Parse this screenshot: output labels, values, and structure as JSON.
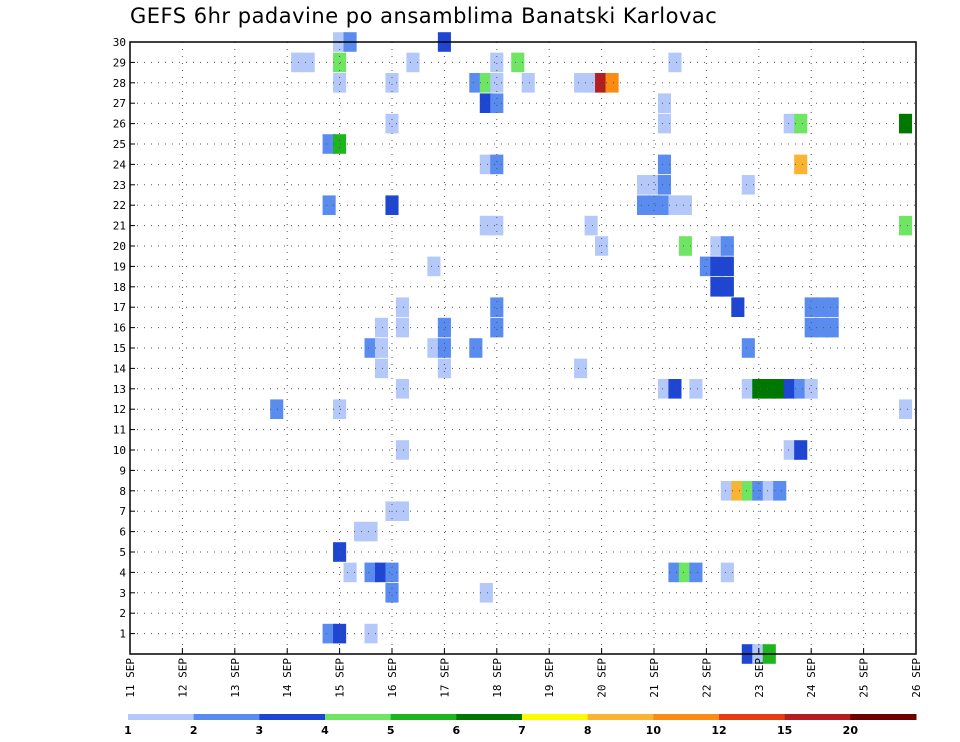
{
  "chart_data": {
    "type": "heatmap",
    "title": "GEFS 6hr padavine po ansamblima Banatski Karlovac",
    "xlabel": "",
    "ylabel": "",
    "x_ticks": [
      "11 SEP",
      "12 SEP",
      "13 SEP",
      "14 SEP",
      "15 SEP",
      "16 SEP",
      "17 SEP",
      "18 SEP",
      "19 SEP",
      "20 SEP",
      "21 SEP",
      "22 SEP",
      "23 SEP",
      "24 SEP",
      "25 SEP",
      "26 SEP"
    ],
    "y_ticks": [
      "1",
      "2",
      "3",
      "4",
      "5",
      "6",
      "7",
      "8",
      "9",
      "10",
      "11",
      "12",
      "13",
      "14",
      "15",
      "16",
      "17",
      "18",
      "19",
      "20",
      "21",
      "22",
      "23",
      "24",
      "25",
      "26",
      "27",
      "28",
      "29",
      "30"
    ],
    "xlim_days": [
      11,
      26
    ],
    "ylim_members": [
      0,
      30
    ],
    "grid": true,
    "legend_placement": "bottom",
    "legend": {
      "thresholds": [
        "1",
        "2",
        "3",
        "4",
        "5",
        "6",
        "7",
        "8",
        "10",
        "12",
        "15",
        "20"
      ],
      "colors": [
        "#b4c8fa",
        "#5a8cf0",
        "#1e46d2",
        "#6ee664",
        "#1eb41e",
        "#007800",
        "#fafa00",
        "#fab432",
        "#fa8c14",
        "#e63c14",
        "#b41e1e",
        "#6e0000"
      ]
    },
    "cells": [
      {
        "d": 14.2,
        "m": 29,
        "c": 0
      },
      {
        "d": 14.4,
        "m": 29,
        "c": 0
      },
      {
        "d": 15.0,
        "m": 29,
        "c": 3
      },
      {
        "d": 15.0,
        "m": 30,
        "c": 0
      },
      {
        "d": 15.2,
        "m": 30,
        "c": 1
      },
      {
        "d": 15.0,
        "m": 28,
        "c": 0
      },
      {
        "d": 16.0,
        "m": 28,
        "c": 0
      },
      {
        "d": 16.4,
        "m": 29,
        "c": 0
      },
      {
        "d": 17.0,
        "m": 30,
        "c": 2
      },
      {
        "d": 17.6,
        "m": 28,
        "c": 1
      },
      {
        "d": 17.8,
        "m": 28,
        "c": 3
      },
      {
        "d": 18.0,
        "m": 28,
        "c": 0
      },
      {
        "d": 18.0,
        "m": 29,
        "c": 0
      },
      {
        "d": 18.4,
        "m": 29,
        "c": 3
      },
      {
        "d": 18.6,
        "m": 28,
        "c": 0
      },
      {
        "d": 17.8,
        "m": 27,
        "c": 2
      },
      {
        "d": 18.0,
        "m": 27,
        "c": 1
      },
      {
        "d": 19.6,
        "m": 28,
        "c": 0
      },
      {
        "d": 19.8,
        "m": 28,
        "c": 0
      },
      {
        "d": 20.0,
        "m": 28,
        "c": 10
      },
      {
        "d": 20.2,
        "m": 28,
        "c": 8
      },
      {
        "d": 21.4,
        "m": 29,
        "c": 0
      },
      {
        "d": 21.2,
        "m": 27,
        "c": 0
      },
      {
        "d": 21.2,
        "m": 26,
        "c": 0
      },
      {
        "d": 16.0,
        "m": 26,
        "c": 0
      },
      {
        "d": 23.6,
        "m": 26,
        "c": 0
      },
      {
        "d": 23.8,
        "m": 26,
        "c": 3
      },
      {
        "d": 25.8,
        "m": 26,
        "c": 5
      },
      {
        "d": 14.8,
        "m": 25,
        "c": 1
      },
      {
        "d": 15.0,
        "m": 25,
        "c": 4
      },
      {
        "d": 17.8,
        "m": 24,
        "c": 0
      },
      {
        "d": 18.0,
        "m": 24,
        "c": 1
      },
      {
        "d": 21.2,
        "m": 24,
        "c": 1
      },
      {
        "d": 23.8,
        "m": 24,
        "c": 7
      },
      {
        "d": 20.8,
        "m": 23,
        "c": 0
      },
      {
        "d": 21.0,
        "m": 23,
        "c": 0
      },
      {
        "d": 21.2,
        "m": 23,
        "c": 1
      },
      {
        "d": 22.8,
        "m": 23,
        "c": 0
      },
      {
        "d": 14.8,
        "m": 22,
        "c": 1
      },
      {
        "d": 16.0,
        "m": 22,
        "c": 2
      },
      {
        "d": 20.8,
        "m": 22,
        "c": 1
      },
      {
        "d": 21.0,
        "m": 22,
        "c": 1
      },
      {
        "d": 21.2,
        "m": 22,
        "c": 1
      },
      {
        "d": 21.4,
        "m": 22,
        "c": 0
      },
      {
        "d": 21.6,
        "m": 22,
        "c": 0
      },
      {
        "d": 17.8,
        "m": 21,
        "c": 0
      },
      {
        "d": 18.0,
        "m": 21,
        "c": 0
      },
      {
        "d": 19.8,
        "m": 21,
        "c": 0
      },
      {
        "d": 20.0,
        "m": 20,
        "c": 0
      },
      {
        "d": 25.8,
        "m": 21,
        "c": 3
      },
      {
        "d": 21.6,
        "m": 20,
        "c": 3
      },
      {
        "d": 22.2,
        "m": 20,
        "c": 0
      },
      {
        "d": 22.4,
        "m": 20,
        "c": 1
      },
      {
        "d": 16.8,
        "m": 19,
        "c": 0
      },
      {
        "d": 22.0,
        "m": 19,
        "c": 1
      },
      {
        "d": 22.2,
        "m": 19,
        "c": 2
      },
      {
        "d": 22.4,
        "m": 19,
        "c": 2
      },
      {
        "d": 22.2,
        "m": 18,
        "c": 2
      },
      {
        "d": 22.4,
        "m": 18,
        "c": 2
      },
      {
        "d": 22.6,
        "m": 17,
        "c": 2
      },
      {
        "d": 16.2,
        "m": 17,
        "c": 0
      },
      {
        "d": 16.2,
        "m": 16,
        "c": 0
      },
      {
        "d": 18.0,
        "m": 17,
        "c": 1
      },
      {
        "d": 18.0,
        "m": 16,
        "c": 1
      },
      {
        "d": 24.0,
        "m": 17,
        "c": 1
      },
      {
        "d": 24.2,
        "m": 17,
        "c": 1
      },
      {
        "d": 24.4,
        "m": 17,
        "c": 1
      },
      {
        "d": 24.0,
        "m": 16,
        "c": 1
      },
      {
        "d": 24.2,
        "m": 16,
        "c": 1
      },
      {
        "d": 24.4,
        "m": 16,
        "c": 1
      },
      {
        "d": 15.6,
        "m": 15,
        "c": 1
      },
      {
        "d": 15.8,
        "m": 15,
        "c": 0
      },
      {
        "d": 15.8,
        "m": 16,
        "c": 0
      },
      {
        "d": 15.8,
        "m": 14,
        "c": 0
      },
      {
        "d": 16.8,
        "m": 15,
        "c": 0
      },
      {
        "d": 17.0,
        "m": 15,
        "c": 1
      },
      {
        "d": 17.0,
        "m": 16,
        "c": 1
      },
      {
        "d": 17.0,
        "m": 14,
        "c": 0
      },
      {
        "d": 17.6,
        "m": 15,
        "c": 1
      },
      {
        "d": 22.8,
        "m": 15,
        "c": 1
      },
      {
        "d": 19.6,
        "m": 14,
        "c": 0
      },
      {
        "d": 16.2,
        "m": 13,
        "c": 0
      },
      {
        "d": 21.2,
        "m": 13,
        "c": 0
      },
      {
        "d": 21.4,
        "m": 13,
        "c": 2
      },
      {
        "d": 21.8,
        "m": 13,
        "c": 0
      },
      {
        "d": 22.8,
        "m": 13,
        "c": 0
      },
      {
        "d": 23.0,
        "m": 13,
        "c": 5
      },
      {
        "d": 23.2,
        "m": 13,
        "c": 5
      },
      {
        "d": 23.4,
        "m": 13,
        "c": 5
      },
      {
        "d": 23.6,
        "m": 13,
        "c": 2
      },
      {
        "d": 23.8,
        "m": 13,
        "c": 1
      },
      {
        "d": 24.0,
        "m": 13,
        "c": 0
      },
      {
        "d": 13.8,
        "m": 12,
        "c": 1
      },
      {
        "d": 15.0,
        "m": 12,
        "c": 0
      },
      {
        "d": 25.8,
        "m": 12,
        "c": 0
      },
      {
        "d": 23.6,
        "m": 10,
        "c": 0
      },
      {
        "d": 23.8,
        "m": 10,
        "c": 2
      },
      {
        "d": 16.2,
        "m": 10,
        "c": 0
      },
      {
        "d": 22.4,
        "m": 8,
        "c": 0
      },
      {
        "d": 22.6,
        "m": 8,
        "c": 7
      },
      {
        "d": 22.8,
        "m": 8,
        "c": 3
      },
      {
        "d": 23.0,
        "m": 8,
        "c": 1
      },
      {
        "d": 23.2,
        "m": 8,
        "c": 0
      },
      {
        "d": 23.4,
        "m": 8,
        "c": 1
      },
      {
        "d": 16.0,
        "m": 7,
        "c": 0
      },
      {
        "d": 16.2,
        "m": 7,
        "c": 0
      },
      {
        "d": 15.4,
        "m": 6,
        "c": 0
      },
      {
        "d": 15.6,
        "m": 6,
        "c": 0
      },
      {
        "d": 15.0,
        "m": 5,
        "c": 2
      },
      {
        "d": 15.2,
        "m": 4,
        "c": 0
      },
      {
        "d": 15.6,
        "m": 4,
        "c": 1
      },
      {
        "d": 15.8,
        "m": 4,
        "c": 2
      },
      {
        "d": 16.0,
        "m": 4,
        "c": 1
      },
      {
        "d": 21.4,
        "m": 4,
        "c": 1
      },
      {
        "d": 21.6,
        "m": 4,
        "c": 3
      },
      {
        "d": 21.8,
        "m": 4,
        "c": 1
      },
      {
        "d": 22.4,
        "m": 4,
        "c": 0
      },
      {
        "d": 16.0,
        "m": 3,
        "c": 1
      },
      {
        "d": 17.8,
        "m": 3,
        "c": 0
      },
      {
        "d": 14.8,
        "m": 1,
        "c": 1
      },
      {
        "d": 15.0,
        "m": 1,
        "c": 2
      },
      {
        "d": 15.6,
        "m": 1,
        "c": 0
      },
      {
        "d": 22.8,
        "m": 0,
        "c": 2
      },
      {
        "d": 23.0,
        "m": 0,
        "c": 0
      },
      {
        "d": 23.2,
        "m": 0,
        "c": 4
      }
    ]
  }
}
